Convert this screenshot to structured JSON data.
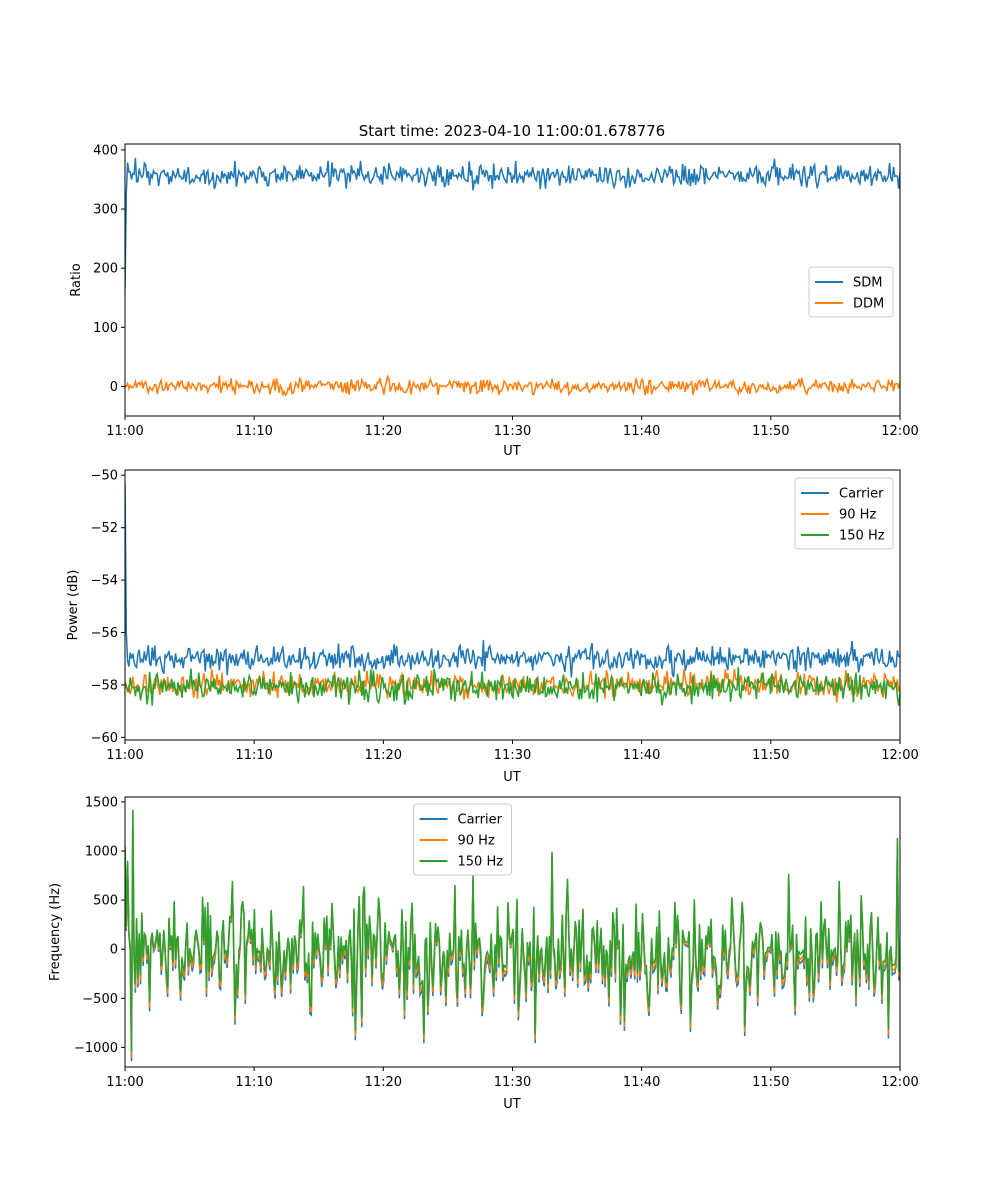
{
  "figure": {
    "title": "Start time: 2023-04-10 11:00:01.678776"
  },
  "colors": {
    "c1": "#1f77b4",
    "c2": "#ff7f0e",
    "c3": "#2ca02c"
  },
  "chart_data": [
    {
      "type": "line",
      "xlabel": "UT",
      "ylabel": "Ratio",
      "x_ticks": [
        "11:00",
        "11:10",
        "11:20",
        "11:30",
        "11:40",
        "11:50",
        "12:00"
      ],
      "y_ticks": [
        "0",
        "100",
        "200",
        "300",
        "400"
      ],
      "y_tick_values": [
        0,
        100,
        200,
        300,
        400
      ],
      "xlim_minutes": [
        0,
        60
      ],
      "ylim": [
        -50,
        410
      ],
      "legend_position": "center-right",
      "series": [
        {
          "name": "SDM",
          "color": "#1f77b4",
          "start": 165,
          "level": 356,
          "noise": 14,
          "spike": 0,
          "seed": 11
        },
        {
          "name": "DDM",
          "color": "#ff7f0e",
          "start": 0,
          "level": 0,
          "noise": 9,
          "spike": 0,
          "seed": 23
        }
      ]
    },
    {
      "type": "line",
      "xlabel": "UT",
      "ylabel": "Power (dB)",
      "x_ticks": [
        "11:00",
        "11:10",
        "11:20",
        "11:30",
        "11:40",
        "11:50",
        "12:00"
      ],
      "y_ticks": [
        "−60",
        "−58",
        "−56",
        "−54",
        "−52",
        "−50"
      ],
      "y_tick_values": [
        -60,
        -58,
        -56,
        -54,
        -52,
        -50
      ],
      "xlim_minutes": [
        0,
        60
      ],
      "ylim": [
        -60.1,
        -49.8
      ],
      "legend_position": "top-right",
      "series": [
        {
          "name": "Carrier",
          "color": "#1f77b4",
          "start": -50.3,
          "level": -57.0,
          "noise": 0.35,
          "spike": 0,
          "seed": 5
        },
        {
          "name": "90 Hz",
          "color": "#ff7f0e",
          "start": -57.9,
          "level": -58.0,
          "noise": 0.35,
          "spike": 0,
          "seed": 7
        },
        {
          "name": "150 Hz",
          "color": "#2ca02c",
          "start": -58.0,
          "level": -58.1,
          "noise": 0.4,
          "spike": 0,
          "seed": 9
        }
      ]
    },
    {
      "type": "line",
      "xlabel": "UT",
      "ylabel": "Frequency (Hz)",
      "x_ticks": [
        "11:00",
        "11:10",
        "11:20",
        "11:30",
        "11:40",
        "11:50",
        "12:00"
      ],
      "y_ticks": [
        "−1000",
        "−500",
        "0",
        "500",
        "1000",
        "1500"
      ],
      "y_tick_values": [
        -1000,
        -500,
        0,
        500,
        1000,
        1500
      ],
      "xlim_minutes": [
        0,
        60
      ],
      "ylim": [
        -1200,
        1550
      ],
      "legend_position": "top-center",
      "series": [
        {
          "name": "Carrier",
          "color": "#1f77b4",
          "offset": -70
        },
        {
          "name": "90 Hz",
          "color": "#ff7f0e",
          "offset": -40
        },
        {
          "name": "150 Hz",
          "color": "#2ca02c",
          "offset": 0
        }
      ],
      "base": {
        "noise": 380,
        "seed": 31
      }
    }
  ]
}
